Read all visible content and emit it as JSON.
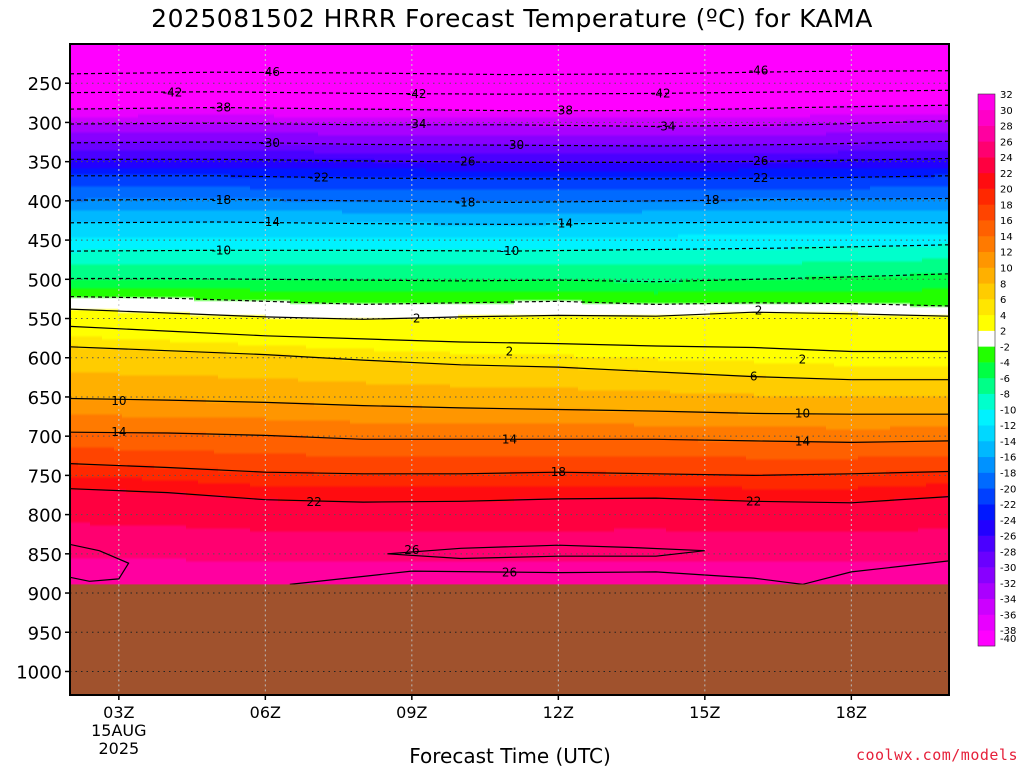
{
  "chart_data": {
    "type": "heatmap",
    "title": "2025081502 HRRR Forecast Temperature (ºC) for KAMA",
    "xlabel": "Forecast Time (UTC)",
    "ylabel": "",
    "credit": "coolwx.com/models",
    "x_ticks": [
      {
        "hour": 3,
        "label": "03Z",
        "sub": [
          "15AUG",
          "2025"
        ]
      },
      {
        "hour": 6,
        "label": "06Z",
        "sub": []
      },
      {
        "hour": 9,
        "label": "09Z",
        "sub": []
      },
      {
        "hour": 12,
        "label": "12Z",
        "sub": []
      },
      {
        "hour": 15,
        "label": "15Z",
        "sub": []
      },
      {
        "hour": 18,
        "label": "18Z",
        "sub": []
      }
    ],
    "x_range_hours": [
      2,
      20
    ],
    "y_ticks": [
      250,
      300,
      350,
      400,
      450,
      500,
      550,
      600,
      650,
      700,
      750,
      800,
      850,
      900,
      950,
      1000
    ],
    "y_range_hPa": [
      200,
      1030
    ],
    "ground_pressure_hPa": 889,
    "ground_color": "#a0522d",
    "colorbar": {
      "levels": [
        -40,
        -38,
        -36,
        -34,
        -32,
        -30,
        -28,
        -26,
        -24,
        -22,
        -20,
        -18,
        -16,
        -14,
        -12,
        -10,
        -8,
        -6,
        -4,
        -2,
        2,
        4,
        6,
        8,
        10,
        12,
        14,
        16,
        18,
        20,
        22,
        24,
        26,
        28,
        30,
        32
      ],
      "colors": [
        "#ff00ff",
        "#e800ff",
        "#cc00ff",
        "#aa00ff",
        "#8800ff",
        "#6a00ff",
        "#4a00ff",
        "#2200ff",
        "#0018ff",
        "#0040ff",
        "#006aff",
        "#0092ff",
        "#00b8ff",
        "#00d8ff",
        "#00f2ff",
        "#00ffcc",
        "#00ff88",
        "#00ff44",
        "#22ff00",
        "#ffffff",
        "#ffff00",
        "#ffe600",
        "#ffcc00",
        "#ffb000",
        "#ff9600",
        "#ff7a00",
        "#ff6000",
        "#ff4400",
        "#ff2800",
        "#ff0c10",
        "#ff0040",
        "#ff0070",
        "#ff00a0",
        "#ff00c8",
        "#ff00e8"
      ]
    },
    "series": [
      {
        "temp": -46,
        "hours": [
          2,
          5,
          8,
          11,
          14,
          17,
          20
        ],
        "pressure": [
          238,
          236,
          237,
          239,
          238,
          235,
          234
        ]
      },
      {
        "temp": -42,
        "hours": [
          2,
          5,
          8,
          11,
          14,
          17,
          20
        ],
        "pressure": [
          262,
          261,
          263,
          264,
          263,
          261,
          259
        ]
      },
      {
        "temp": -38,
        "hours": [
          2,
          5,
          8,
          11,
          14,
          17,
          20
        ],
        "pressure": [
          283,
          281,
          283,
          285,
          285,
          281,
          278
        ]
      },
      {
        "temp": -34,
        "hours": [
          2,
          5,
          8,
          11,
          14,
          17,
          20
        ],
        "pressure": [
          302,
          301,
          303,
          303,
          305,
          303,
          298
        ]
      },
      {
        "temp": -30,
        "hours": [
          2,
          5,
          8,
          11,
          14,
          17,
          20
        ],
        "pressure": [
          326,
          325,
          328,
          329,
          330,
          328,
          324
        ]
      },
      {
        "temp": -26,
        "hours": [
          2,
          5,
          8,
          11,
          14,
          17,
          20
        ],
        "pressure": [
          347,
          347,
          349,
          351,
          351,
          349,
          346
        ]
      },
      {
        "temp": -22,
        "hours": [
          2,
          5,
          8,
          11,
          14,
          17,
          20
        ],
        "pressure": [
          368,
          368,
          371,
          372,
          372,
          371,
          368
        ]
      },
      {
        "temp": -18,
        "hours": [
          2,
          5,
          8,
          11,
          14,
          17,
          20
        ],
        "pressure": [
          399,
          398,
          400,
          402,
          400,
          398,
          397
        ]
      },
      {
        "temp": -14,
        "hours": [
          2,
          5,
          8,
          11,
          14,
          17,
          20
        ],
        "pressure": [
          428,
          427,
          429,
          430,
          428,
          427,
          428
        ]
      },
      {
        "temp": -10,
        "hours": [
          2,
          5,
          8,
          11,
          14,
          17,
          20
        ],
        "pressure": [
          464,
          463,
          463,
          464,
          462,
          460,
          456
        ]
      },
      {
        "temp": -6,
        "hours": [
          2,
          4,
          6,
          8,
          10,
          12,
          14,
          16,
          18,
          20
        ],
        "pressure": [
          499,
          499,
          500,
          501,
          502,
          501,
          503,
          500,
          497,
          493
        ]
      },
      {
        "temp": -2,
        "hours": [
          2,
          4,
          6,
          8,
          10,
          12,
          14,
          16,
          18,
          20
        ],
        "pressure": [
          522,
          524,
          528,
          532,
          530,
          528,
          532,
          530,
          531,
          534
        ]
      },
      {
        "temp": 2,
        "hours": [
          2,
          4,
          6,
          8,
          10,
          12,
          14,
          16,
          18,
          20
        ],
        "pressure": [
          538,
          543,
          548,
          551,
          548,
          546,
          547,
          542,
          544,
          547
        ]
      },
      {
        "temp": 2,
        "hours": [
          2,
          4,
          6,
          8,
          10,
          12,
          14,
          16,
          18,
          20
        ],
        "pressure": [
          560,
          566,
          572,
          576,
          580,
          582,
          585,
          587,
          592,
          592
        ]
      },
      {
        "temp": 6,
        "hours": [
          2,
          4,
          6,
          8,
          10,
          12,
          14,
          16,
          18,
          20
        ],
        "pressure": [
          586,
          591,
          596,
          603,
          609,
          612,
          618,
          624,
          628,
          628
        ]
      },
      {
        "temp": 10,
        "hours": [
          2,
          4,
          6,
          8,
          10,
          12,
          14,
          16,
          18,
          20
        ],
        "pressure": [
          652,
          654,
          657,
          661,
          664,
          666,
          668,
          671,
          672,
          672
        ]
      },
      {
        "temp": 14,
        "hours": [
          2,
          4,
          6,
          8,
          10,
          12,
          14,
          16,
          18,
          20
        ],
        "pressure": [
          695,
          696,
          699,
          704,
          704,
          704,
          704,
          706,
          708,
          706
        ]
      },
      {
        "temp": 18,
        "hours": [
          2,
          4,
          6,
          8,
          10,
          12,
          14,
          16,
          18,
          20
        ],
        "pressure": [
          735,
          740,
          746,
          748,
          748,
          746,
          748,
          750,
          748,
          745
        ]
      },
      {
        "temp": 22,
        "hours": [
          2,
          4,
          6,
          8,
          10,
          12,
          14,
          16,
          18,
          20
        ],
        "pressure": [
          767,
          772,
          781,
          784,
          783,
          780,
          779,
          783,
          785,
          777
        ]
      },
      {
        "temp": 26,
        "hours": [
          8.5,
          10,
          12,
          13.5,
          15,
          14,
          12,
          10,
          8.5
        ],
        "pressure": [
          850,
          843,
          839,
          842,
          846,
          853,
          853,
          856,
          850
        ]
      },
      {
        "temp": 26,
        "hours": [
          2,
          2.6,
          3.2,
          3.0,
          2.4,
          2
        ],
        "pressure": [
          838,
          846,
          862,
          882,
          885,
          880
        ]
      },
      {
        "temp": 26,
        "hours": [
          6.5,
          9,
          12,
          14,
          16,
          17,
          18,
          20
        ],
        "pressure": [
          889,
          872,
          874,
          873,
          881,
          889,
          873,
          859
        ]
      }
    ],
    "labels": [
      {
        "text": "-46",
        "hour": 6.1,
        "p": 236
      },
      {
        "text": "-46",
        "hour": 16.1,
        "p": 234
      },
      {
        "text": "-42",
        "hour": 4.1,
        "p": 262
      },
      {
        "text": "-42",
        "hour": 9.1,
        "p": 264
      },
      {
        "text": "-42",
        "hour": 14.1,
        "p": 263
      },
      {
        "text": "-38",
        "hour": 5.1,
        "p": 281
      },
      {
        "text": "-38",
        "hour": 12.1,
        "p": 285
      },
      {
        "text": "-34",
        "hour": 9.1,
        "p": 302
      },
      {
        "text": "-34",
        "hour": 14.2,
        "p": 305
      },
      {
        "text": "-30",
        "hour": 6.1,
        "p": 326
      },
      {
        "text": "-30",
        "hour": 11.1,
        "p": 329
      },
      {
        "text": "-26",
        "hour": 10.1,
        "p": 350
      },
      {
        "text": "-26",
        "hour": 16.1,
        "p": 349
      },
      {
        "text": "-22",
        "hour": 7.1,
        "p": 370
      },
      {
        "text": "-22",
        "hour": 16.1,
        "p": 371
      },
      {
        "text": "-18",
        "hour": 5.1,
        "p": 399
      },
      {
        "text": "-18",
        "hour": 10.1,
        "p": 402
      },
      {
        "text": "-18",
        "hour": 15.1,
        "p": 399
      },
      {
        "text": "-14",
        "hour": 6.1,
        "p": 427
      },
      {
        "text": "-14",
        "hour": 12.1,
        "p": 429
      },
      {
        "text": "-10",
        "hour": 5.1,
        "p": 463
      },
      {
        "text": "-10",
        "hour": 11.0,
        "p": 464
      },
      {
        "text": "2",
        "hour": 9.1,
        "p": 550
      },
      {
        "text": "2",
        "hour": 16.1,
        "p": 540
      },
      {
        "text": "2",
        "hour": 11.0,
        "p": 592
      },
      {
        "text": "2",
        "hour": 17.0,
        "p": 602
      },
      {
        "text": "6",
        "hour": 16.0,
        "p": 624
      },
      {
        "text": "10",
        "hour": 3.0,
        "p": 655
      },
      {
        "text": "10",
        "hour": 17.0,
        "p": 671
      },
      {
        "text": "14",
        "hour": 3.0,
        "p": 695
      },
      {
        "text": "14",
        "hour": 11.0,
        "p": 704
      },
      {
        "text": "14",
        "hour": 17.0,
        "p": 707
      },
      {
        "text": "18",
        "hour": 12.0,
        "p": 746
      },
      {
        "text": "22",
        "hour": 7.0,
        "p": 784
      },
      {
        "text": "22",
        "hour": 16.0,
        "p": 783
      },
      {
        "text": "26",
        "hour": 9.0,
        "p": 845
      },
      {
        "text": "26",
        "hour": 11.0,
        "p": 874
      }
    ]
  }
}
